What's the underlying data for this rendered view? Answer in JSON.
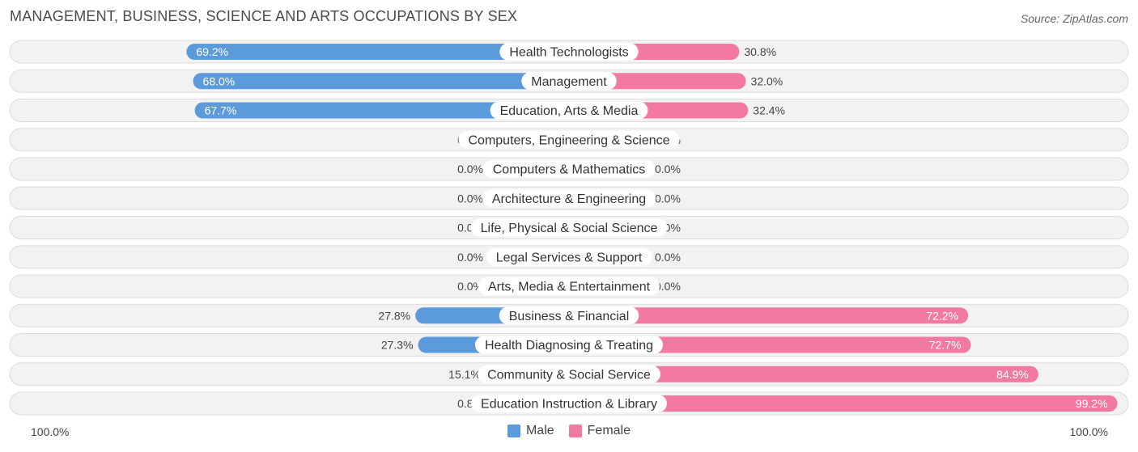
{
  "header": {
    "title": "MANAGEMENT, BUSINESS, SCIENCE AND ARTS OCCUPATIONS BY SEX",
    "source": "Source: ZipAtlas.com"
  },
  "axis": {
    "left_label": "100.0%",
    "right_label": "100.0%"
  },
  "legend": {
    "male_label": "Male",
    "female_label": "Female"
  },
  "colors": {
    "male_strong": "#5b9bdc",
    "male_light": "#a9c8ea",
    "female_strong": "#f27aa0",
    "female_light": "#f6aac3",
    "row_bg": "#f2f2f2",
    "row_border": "#dcdcdc"
  },
  "chart_data": {
    "type": "bar",
    "orientation": "horizontal-diverging",
    "title": "MANAGEMENT, BUSINESS, SCIENCE AND ARTS OCCUPATIONS BY SEX",
    "xlim": [
      -100,
      100
    ],
    "legend_position": "bottom-center",
    "categories": [
      "Health Technologists",
      "Management",
      "Education, Arts & Media",
      "Computers, Engineering & Science",
      "Computers & Mathematics",
      "Architecture & Engineering",
      "Life, Physical & Social Science",
      "Legal Services & Support",
      "Arts, Media & Entertainment",
      "Business & Financial",
      "Health Diagnosing & Treating",
      "Community & Social Service",
      "Education Instruction & Library"
    ],
    "series": [
      {
        "name": "Male",
        "values": [
          69.2,
          68.0,
          67.7,
          0.0,
          0.0,
          0.0,
          0.0,
          0.0,
          0.0,
          27.8,
          27.3,
          15.1,
          0.8
        ],
        "labels": [
          "69.2%",
          "68.0%",
          "67.7%",
          "0.0%",
          "0.0%",
          "0.0%",
          "0.0%",
          "0.0%",
          "0.0%",
          "27.8%",
          "27.3%",
          "15.1%",
          "0.8%"
        ]
      },
      {
        "name": "Female",
        "values": [
          30.8,
          32.0,
          32.4,
          0.0,
          0.0,
          0.0,
          0.0,
          0.0,
          0.0,
          72.2,
          72.7,
          84.9,
          99.2
        ],
        "labels": [
          "30.8%",
          "32.0%",
          "32.4%",
          "0.0%",
          "0.0%",
          "0.0%",
          "0.0%",
          "0.0%",
          "0.0%",
          "72.2%",
          "72.7%",
          "84.9%",
          "99.2%"
        ]
      }
    ]
  }
}
